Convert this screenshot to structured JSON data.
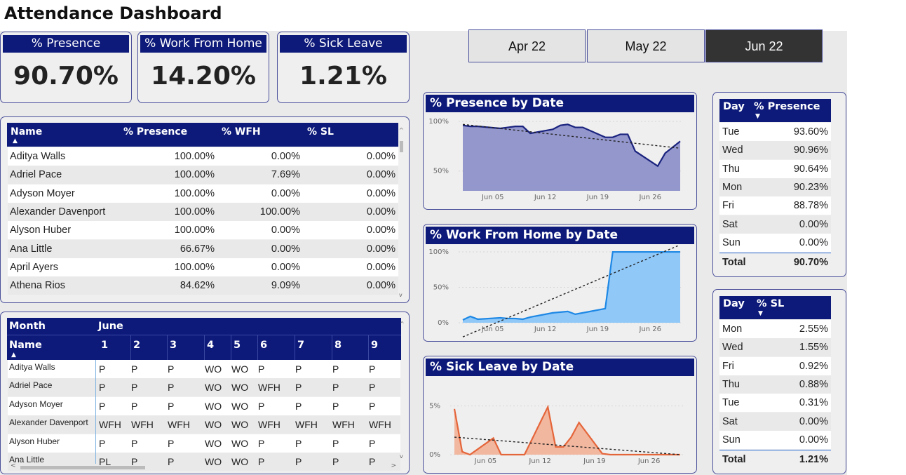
{
  "header": {
    "title": "Attendance Dashboard"
  },
  "kpis": [
    {
      "label": "% Presence",
      "value": "90.70%"
    },
    {
      "label": "% Work From Home",
      "value": "14.20%"
    },
    {
      "label": "% Sick Leave",
      "value": "1.21%"
    }
  ],
  "months": [
    {
      "label": "Apr 22",
      "active": false
    },
    {
      "label": "May 22",
      "active": false
    },
    {
      "label": "Jun 22",
      "active": true
    }
  ],
  "employee_table": {
    "columns": [
      "Name",
      "% Presence",
      "% WFH",
      "% SL"
    ],
    "rows": [
      [
        "Aditya Walls",
        "100.00%",
        "0.00%",
        "0.00%"
      ],
      [
        "Adriel Pace",
        "100.00%",
        "7.69%",
        "0.00%"
      ],
      [
        "Adyson Moyer",
        "100.00%",
        "0.00%",
        "0.00%"
      ],
      [
        "Alexander Davenport",
        "100.00%",
        "100.00%",
        "0.00%"
      ],
      [
        "Alyson Huber",
        "100.00%",
        "0.00%",
        "0.00%"
      ],
      [
        "Ana Little",
        "66.67%",
        "0.00%",
        "0.00%"
      ],
      [
        "April Ayers",
        "100.00%",
        "0.00%",
        "0.00%"
      ],
      [
        "Athena Rios",
        "84.62%",
        "9.09%",
        "0.00%"
      ]
    ]
  },
  "attendance_matrix": {
    "month_label": "Month",
    "month_value": "June",
    "name_label": "Name",
    "days": [
      "1",
      "2",
      "3",
      "4",
      "5",
      "6",
      "7",
      "8",
      "9"
    ],
    "rows": [
      {
        "name": "Aditya Walls",
        "values": [
          "P",
          "P",
          "P",
          "WO",
          "WO",
          "P",
          "P",
          "P",
          "P"
        ]
      },
      {
        "name": "Adriel Pace",
        "values": [
          "P",
          "P",
          "P",
          "WO",
          "WO",
          "WFH",
          "P",
          "P",
          "P"
        ]
      },
      {
        "name": "Adyson Moyer",
        "values": [
          "P",
          "P",
          "P",
          "WO",
          "WO",
          "P",
          "P",
          "P",
          "P"
        ]
      },
      {
        "name": "Alexander Davenport",
        "values": [
          "WFH",
          "WFH",
          "WFH",
          "WO",
          "WO",
          "WFH",
          "WFH",
          "WFH",
          "WFH"
        ]
      },
      {
        "name": "Alyson Huber",
        "values": [
          "P",
          "P",
          "P",
          "WO",
          "WO",
          "P",
          "P",
          "P",
          "P"
        ]
      },
      {
        "name": "Ana Little",
        "values": [
          "PL",
          "P",
          "P",
          "WO",
          "WO",
          "P",
          "P",
          "P",
          "P"
        ]
      }
    ]
  },
  "charts_text": {
    "presence_title": "% Presence by Date",
    "wfh_title": "% Work From Home by Date",
    "sl_title": "% Sick Leave by Date"
  },
  "chart_data": [
    {
      "type": "area",
      "title": "% Presence by Date",
      "x": [
        "Jun 01",
        "Jun 02",
        "Jun 03",
        "Jun 06",
        "Jun 07",
        "Jun 08",
        "Jun 09",
        "Jun 10",
        "Jun 13",
        "Jun 14",
        "Jun 15",
        "Jun 16",
        "Jun 17",
        "Jun 20",
        "Jun 21",
        "Jun 22",
        "Jun 23",
        "Jun 24",
        "Jun 27",
        "Jun 28",
        "Jun 29",
        "Jun 30"
      ],
      "x_ticks": [
        "Jun 05",
        "Jun 12",
        "Jun 19",
        "Jun 26"
      ],
      "y_ticks": [
        "100%",
        "50%"
      ],
      "ylim": [
        30,
        105
      ],
      "series": [
        {
          "values": [
            96,
            95,
            95,
            93,
            94,
            95,
            95,
            88,
            92,
            96,
            97,
            94,
            94,
            84,
            84,
            87,
            87,
            70,
            55,
            68,
            74,
            80
          ]
        }
      ],
      "trend": [
        97,
        73
      ],
      "color": "#1a237e",
      "fill": "#9497cc"
    },
    {
      "type": "area",
      "title": "% Work From Home by Date",
      "x": [
        "Jun 01",
        "Jun 02",
        "Jun 03",
        "Jun 06",
        "Jun 07",
        "Jun 08",
        "Jun 09",
        "Jun 10",
        "Jun 13",
        "Jun 14",
        "Jun 15",
        "Jun 16",
        "Jun 17",
        "Jun 20",
        "Jun 21",
        "Jun 22",
        "Jun 23",
        "Jun 24",
        "Jun 27",
        "Jun 28",
        "Jun 29",
        "Jun 30"
      ],
      "x_ticks": [
        "Jun 05",
        "Jun 12",
        "Jun 19",
        "Jun 26"
      ],
      "y_ticks": [
        "100%",
        "50%",
        "0%"
      ],
      "ylim": [
        0,
        105
      ],
      "series": [
        {
          "values": [
            4,
            9,
            5,
            7,
            6,
            6,
            5,
            8,
            14,
            15,
            16,
            12,
            14,
            20,
            100,
            100,
            100,
            100,
            100,
            100,
            100,
            100
          ]
        }
      ],
      "trend": [
        -20,
        110
      ],
      "color": "#1e88e5",
      "fill": "#90c8f8"
    },
    {
      "type": "area",
      "title": "% Sick Leave by Date",
      "x": [
        "Jun 01",
        "Jun 02",
        "Jun 03",
        "Jun 06",
        "Jun 07",
        "Jun 08",
        "Jun 09",
        "Jun 10",
        "Jun 13",
        "Jun 14",
        "Jun 15",
        "Jun 16",
        "Jun 17",
        "Jun 20",
        "Jun 21",
        "Jun 22",
        "Jun 23",
        "Jun 24",
        "Jun 27",
        "Jun 28",
        "Jun 29",
        "Jun 30"
      ],
      "x_ticks": [
        "Jun 05",
        "Jun 12",
        "Jun 19",
        "Jun 26"
      ],
      "y_ticks": [
        "5%",
        "0%"
      ],
      "ylim": [
        0,
        7.5
      ],
      "series": [
        {
          "values": [
            4.7,
            0.3,
            0.0,
            1.7,
            0.0,
            0.0,
            0.0,
            0.0,
            4.9,
            0.8,
            0.8,
            1.8,
            3.3,
            0.1,
            0.0,
            0.0,
            0.0,
            0.0,
            0.0,
            0.0,
            0.0,
            0.0
          ]
        }
      ],
      "trend": [
        1.8,
        0.0
      ],
      "color": "#e5653a",
      "fill": "#f1b79f"
    }
  ],
  "presence_by_day": {
    "columns": [
      "Day",
      "% Presence"
    ],
    "rows": [
      [
        "Tue",
        "93.60%"
      ],
      [
        "Wed",
        "90.96%"
      ],
      [
        "Thu",
        "90.64%"
      ],
      [
        "Mon",
        "90.23%"
      ],
      [
        "Fri",
        "88.78%"
      ],
      [
        "Sat",
        "0.00%"
      ],
      [
        "Sun",
        "0.00%"
      ]
    ],
    "total": [
      "Total",
      "90.70%"
    ]
  },
  "sl_by_day": {
    "columns": [
      "Day",
      "% SL"
    ],
    "rows": [
      [
        "Mon",
        "2.55%"
      ],
      [
        "Wed",
        "1.55%"
      ],
      [
        "Fri",
        "0.92%"
      ],
      [
        "Thu",
        "0.88%"
      ],
      [
        "Tue",
        "0.31%"
      ],
      [
        "Sat",
        "0.00%"
      ],
      [
        "Sun",
        "0.00%"
      ]
    ],
    "total": [
      "Total",
      "1.21%"
    ]
  }
}
